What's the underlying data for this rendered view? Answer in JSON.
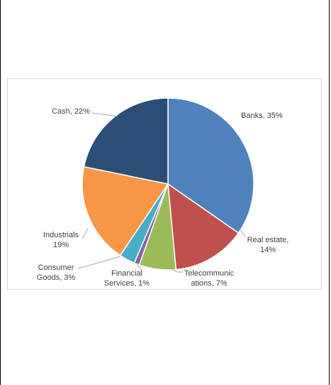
{
  "chart_data": {
    "type": "pie",
    "title": "",
    "slices": [
      {
        "name": "Banks",
        "value": 35,
        "label_lines": [
          "Banks, 35%"
        ],
        "color": "#4f81bd"
      },
      {
        "name": "Real estate",
        "value": 14,
        "label_lines": [
          "Real estate,",
          "14%"
        ],
        "color": "#c0504d"
      },
      {
        "name": "Telecommunications",
        "value": 7,
        "label_lines": [
          "Telecommunic",
          "ations, 7%"
        ],
        "color": "#9bbb59"
      },
      {
        "name": "Financial Services",
        "value": 1,
        "label_lines": [
          "Financial",
          "Services, 1%"
        ],
        "color": "#8064a2"
      },
      {
        "name": "Consumer Goods",
        "value": 3,
        "label_lines": [
          "Consumer",
          "Goods, 3%"
        ],
        "color": "#4bacc6"
      },
      {
        "name": "Industrials",
        "value": 19,
        "label_lines": [
          "Industrials",
          "19%"
        ],
        "color": "#f79646"
      },
      {
        "name": "Cash",
        "value": 22,
        "label_lines": [
          "Cash, 22%"
        ],
        "color": "#2c4d75"
      }
    ]
  }
}
